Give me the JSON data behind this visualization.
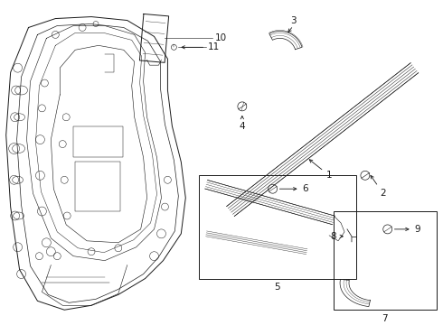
{
  "bg_color": "#ffffff",
  "line_color": "#1a1a1a",
  "fig_width": 4.9,
  "fig_height": 3.6,
  "dpi": 100,
  "label_fontsize": 7.5,
  "lw": 0.7
}
